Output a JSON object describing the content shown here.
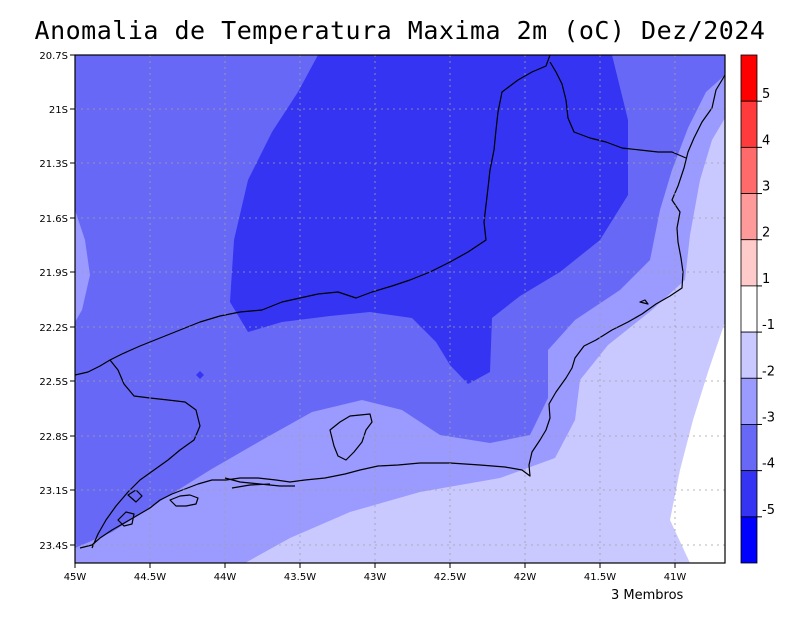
{
  "title": "Anomalia de Temperatura Maxima 2m (oC) Dez/2024",
  "footnote": "3 Membros",
  "chart_data": {
    "type": "contour-map",
    "lon_range": [
      -45,
      -40.75
    ],
    "lat_range": [
      -23.5,
      -20.7
    ],
    "x_ticks": [
      "45W",
      "44.5W",
      "44W",
      "43.5W",
      "43W",
      "42.5W",
      "42W",
      "41.5W",
      "41W"
    ],
    "y_ticks": [
      "20.7S",
      "21S",
      "21.3S",
      "21.6S",
      "21.9S",
      "22.2S",
      "22.5S",
      "22.8S",
      "23.1S",
      "23.4S"
    ],
    "grid": true,
    "colorbar": {
      "position": "right",
      "labels": [
        "5",
        "4",
        "3",
        "2",
        "1",
        "-1",
        "-2",
        "-3",
        "-4",
        "-5"
      ],
      "colors": [
        "#ff0000",
        "#ff3b3b",
        "#ff6a6a",
        "#ff9a9a",
        "#ffcaca",
        "#ffffff",
        "#c9c9ff",
        "#9a9aff",
        "#6868f6",
        "#3434f2",
        "#0000ff"
      ]
    },
    "shading": [
      {
        "range": "-1 to 1",
        "color": "#ffffff"
      },
      {
        "range": "-2 to -1",
        "color": "#c9c9ff"
      },
      {
        "range": "-3 to -2",
        "color": "#9a9aff"
      },
      {
        "range": "-4 to -3",
        "color": "#6868f6"
      },
      {
        "range": "-5 to -4",
        "color": "#3434f2"
      }
    ]
  }
}
